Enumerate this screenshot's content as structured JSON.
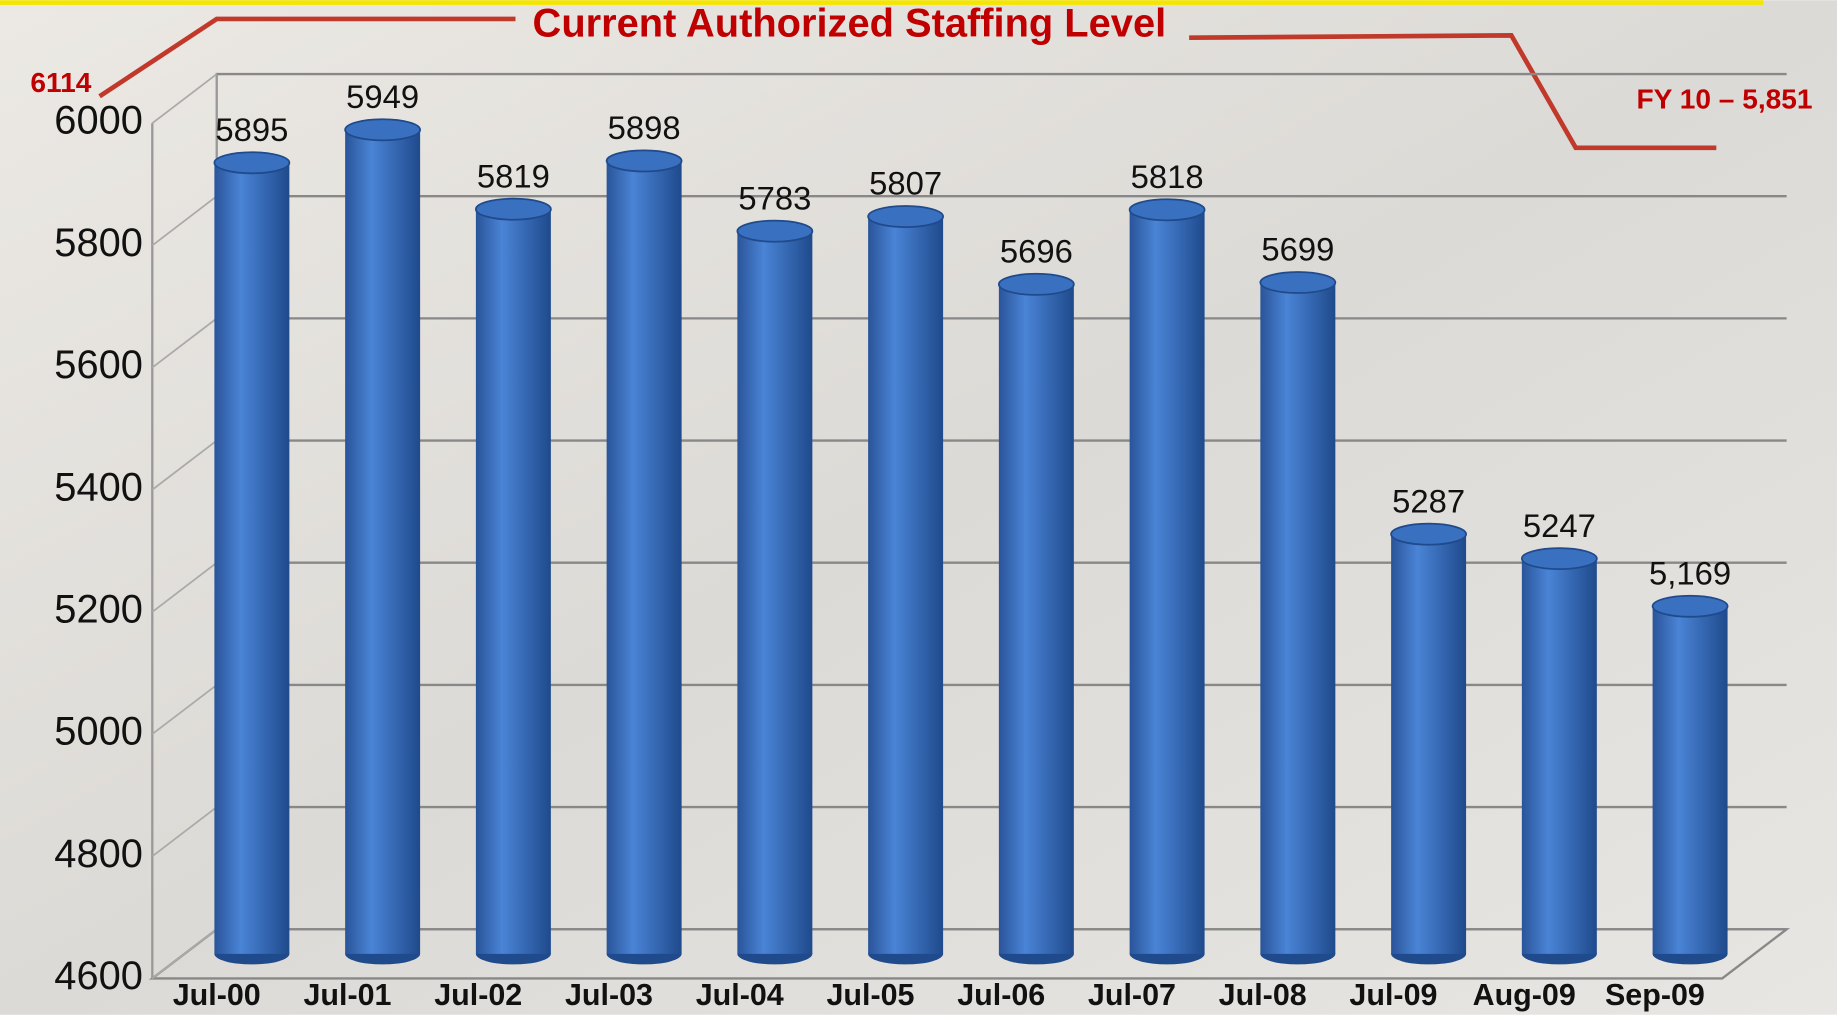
{
  "chart_data": {
    "type": "bar",
    "annotations": [
      "Current Authorized Staffing Level",
      "6114",
      "FY 10 – 5,851"
    ],
    "categories": [
      "Jul-00",
      "Jul-01",
      "Jul-02",
      "Jul-03",
      "Jul-04",
      "Jul-05",
      "Jul-06",
      "Jul-07",
      "Jul-08",
      "Jul-09",
      "Aug-09",
      "Sep-09"
    ],
    "values": [
      5895,
      5949,
      5819,
      5898,
      5783,
      5807,
      5696,
      5818,
      5699,
      5287,
      5247,
      5169
    ],
    "value_labels": [
      "5895",
      "5949",
      "5819",
      "5898",
      "5783",
      "5807",
      "5696",
      "5818",
      "5699",
      "5287",
      "5247",
      "5,169"
    ],
    "color": "#3a70c0",
    "ylim": [
      4600,
      6000
    ],
    "yticks": [
      4600,
      4800,
      5000,
      5200,
      5400,
      5600,
      5800,
      6000
    ],
    "grid": true
  }
}
